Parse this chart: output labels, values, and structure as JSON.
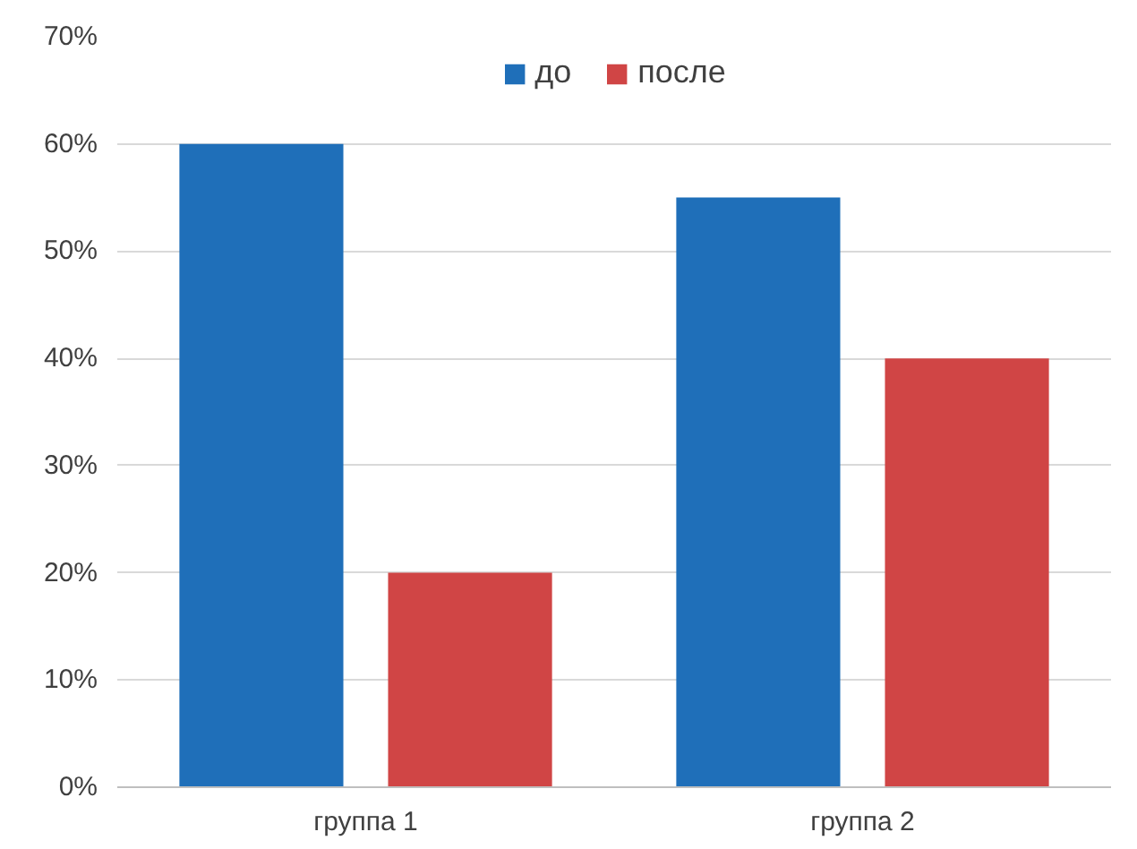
{
  "chart_data": {
    "type": "bar",
    "categories": [
      "группа 1",
      "группа 2"
    ],
    "series": [
      {
        "name": "до",
        "color": "#1f6fb9",
        "values": [
          60,
          55
        ]
      },
      {
        "name": "после",
        "color": "#d04545",
        "values": [
          20,
          40
        ]
      }
    ],
    "ylim": [
      0,
      70
    ],
    "yticks": [
      {
        "value": 0,
        "label": "0%"
      },
      {
        "value": 10,
        "label": "10%"
      },
      {
        "value": 20,
        "label": "20%"
      },
      {
        "value": 30,
        "label": "30%"
      },
      {
        "value": 40,
        "label": "40%"
      },
      {
        "value": 50,
        "label": "50%"
      },
      {
        "value": 60,
        "label": "60%"
      },
      {
        "value": 70,
        "label": "70%"
      }
    ],
    "grid": "y",
    "legend": "top"
  }
}
